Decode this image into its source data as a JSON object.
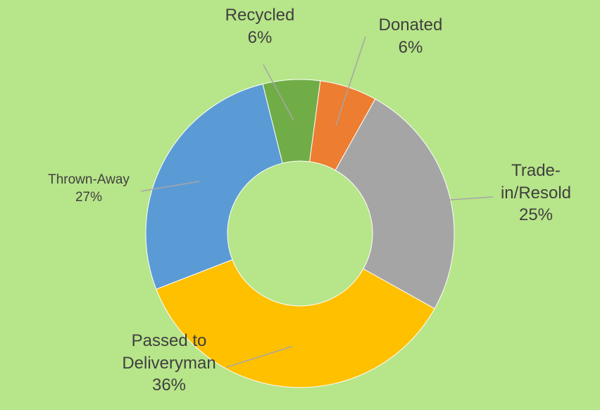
{
  "chart_data": {
    "type": "pie",
    "variant": "doughnut",
    "slices": [
      {
        "label": "Recycled",
        "value": 6,
        "value_label": "6%",
        "color": "#70ad47"
      },
      {
        "label": "Donated",
        "value": 6,
        "value_label": "6%",
        "color": "#ed7d31"
      },
      {
        "label": "Trade-in/Resold",
        "label_lines": [
          "Trade-",
          "in/Resold"
        ],
        "value": 25,
        "value_label": "25%",
        "color": "#a5a5a5"
      },
      {
        "label": "Passed to Deliveryman",
        "label_lines": [
          "Passed to",
          "Deliveryman"
        ],
        "value": 36,
        "value_label": "36%",
        "color": "#ffc000"
      },
      {
        "label": "Thrown-Away",
        "value": 27,
        "value_label": "27%",
        "color": "#5b9bd5"
      }
    ],
    "legend": "none",
    "title": "",
    "background": "#b7e589",
    "leader_line_color": "#a6a6a6"
  }
}
